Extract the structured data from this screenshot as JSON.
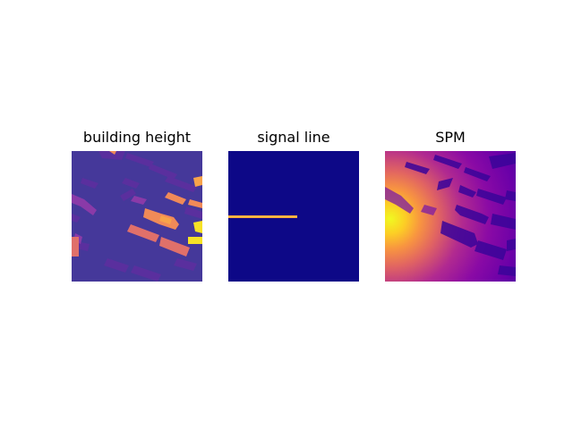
{
  "figure": {
    "panels": [
      {
        "title": "building height",
        "colormap": "plasma"
      },
      {
        "title": "signal line",
        "colormap": "plasma"
      },
      {
        "title": "SPM",
        "colormap": "plasma"
      }
    ]
  },
  "colors": {
    "plasma_dark": "#0d0887",
    "plasma_purple": "#6a00a8",
    "plasma_magenta": "#b12a90",
    "plasma_pink": "#e16462",
    "plasma_orange": "#fca636",
    "plasma_yellow": "#f0f921"
  }
}
